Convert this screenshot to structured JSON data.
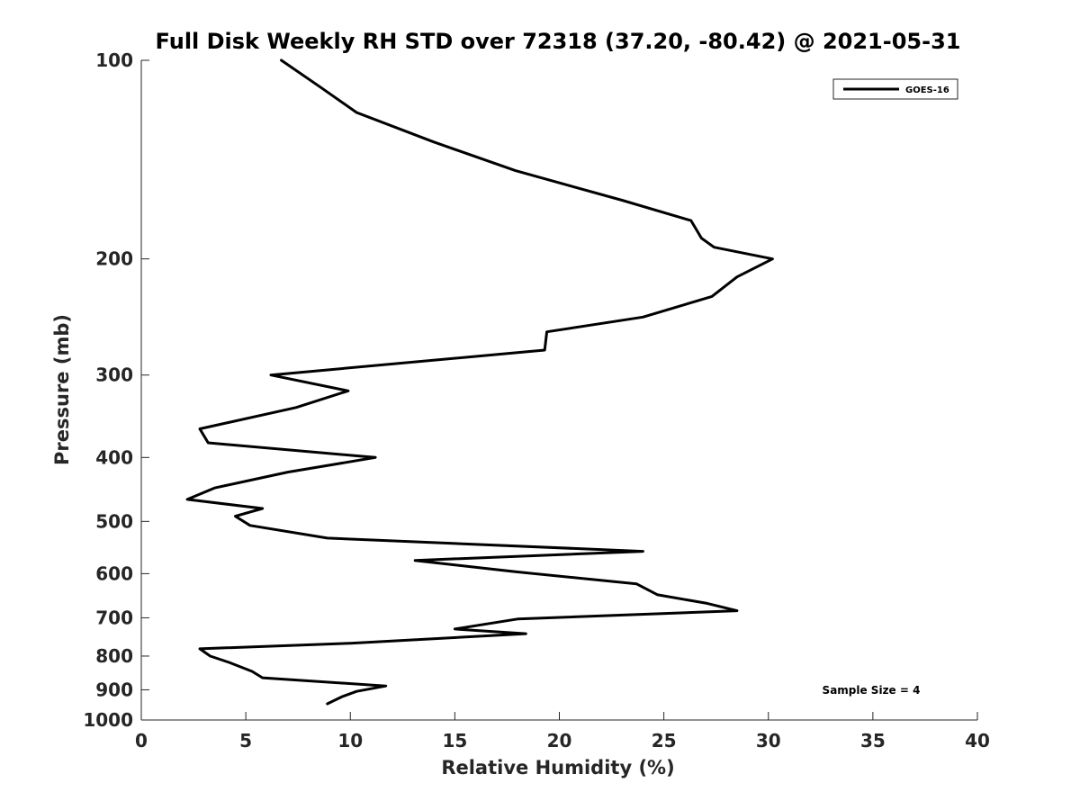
{
  "chart_data": {
    "type": "line",
    "title": "Full Disk Weekly RH STD over 72318 (37.20, -80.42) @ 2021-05-31",
    "xlabel": "Relative Humidity (%)",
    "ylabel": "Pressure (mb)",
    "xlim": [
      0,
      40
    ],
    "ylim": [
      100,
      1000
    ],
    "y_scale": "log",
    "y_reversed": true,
    "x_ticks": [
      0,
      5,
      10,
      15,
      20,
      25,
      30,
      35,
      40
    ],
    "x_tick_labels": [
      "0",
      "5",
      "10",
      "15",
      "20",
      "25",
      "30",
      "35",
      "40"
    ],
    "y_ticks": [
      100,
      200,
      300,
      400,
      500,
      600,
      700,
      800,
      900,
      1000
    ],
    "y_tick_labels": [
      "100",
      "200",
      "300",
      "400",
      "500",
      "600",
      "700",
      "800",
      "900",
      "1000"
    ],
    "grid": false,
    "legend_position": "top-right",
    "annotation": "Sample Size = 4",
    "series": [
      {
        "name": "GOES-16",
        "color": "#000000",
        "points": [
          [
            6.7,
            100
          ],
          [
            8.6,
            110
          ],
          [
            10.3,
            120
          ],
          [
            14.0,
            133
          ],
          [
            17.9,
            147
          ],
          [
            23.0,
            163
          ],
          [
            26.3,
            175
          ],
          [
            26.8,
            186
          ],
          [
            27.4,
            192
          ],
          [
            30.2,
            200
          ],
          [
            28.5,
            213
          ],
          [
            27.3,
            228
          ],
          [
            24.0,
            245
          ],
          [
            19.4,
            258
          ],
          [
            19.3,
            275
          ],
          [
            6.2,
            300
          ],
          [
            9.9,
            317
          ],
          [
            7.4,
            336
          ],
          [
            2.8,
            362
          ],
          [
            3.2,
            380
          ],
          [
            11.2,
            400
          ],
          [
            7.0,
            421
          ],
          [
            3.5,
            445
          ],
          [
            2.2,
            463
          ],
          [
            5.8,
            478
          ],
          [
            4.5,
            491
          ],
          [
            5.2,
            507
          ],
          [
            8.9,
            530
          ],
          [
            24.0,
            555
          ],
          [
            13.1,
            573
          ],
          [
            17.9,
            596
          ],
          [
            23.7,
            622
          ],
          [
            24.7,
            646
          ],
          [
            27.0,
            665
          ],
          [
            28.5,
            683
          ],
          [
            18.0,
            703
          ],
          [
            15.0,
            728
          ],
          [
            18.4,
            740
          ],
          [
            10.0,
            765
          ],
          [
            2.8,
            780
          ],
          [
            3.3,
            800
          ],
          [
            4.2,
            818
          ],
          [
            5.3,
            844
          ],
          [
            5.8,
            863
          ],
          [
            11.7,
            888
          ],
          [
            10.3,
            905
          ],
          [
            9.6,
            922
          ],
          [
            8.9,
            945
          ]
        ]
      }
    ]
  }
}
